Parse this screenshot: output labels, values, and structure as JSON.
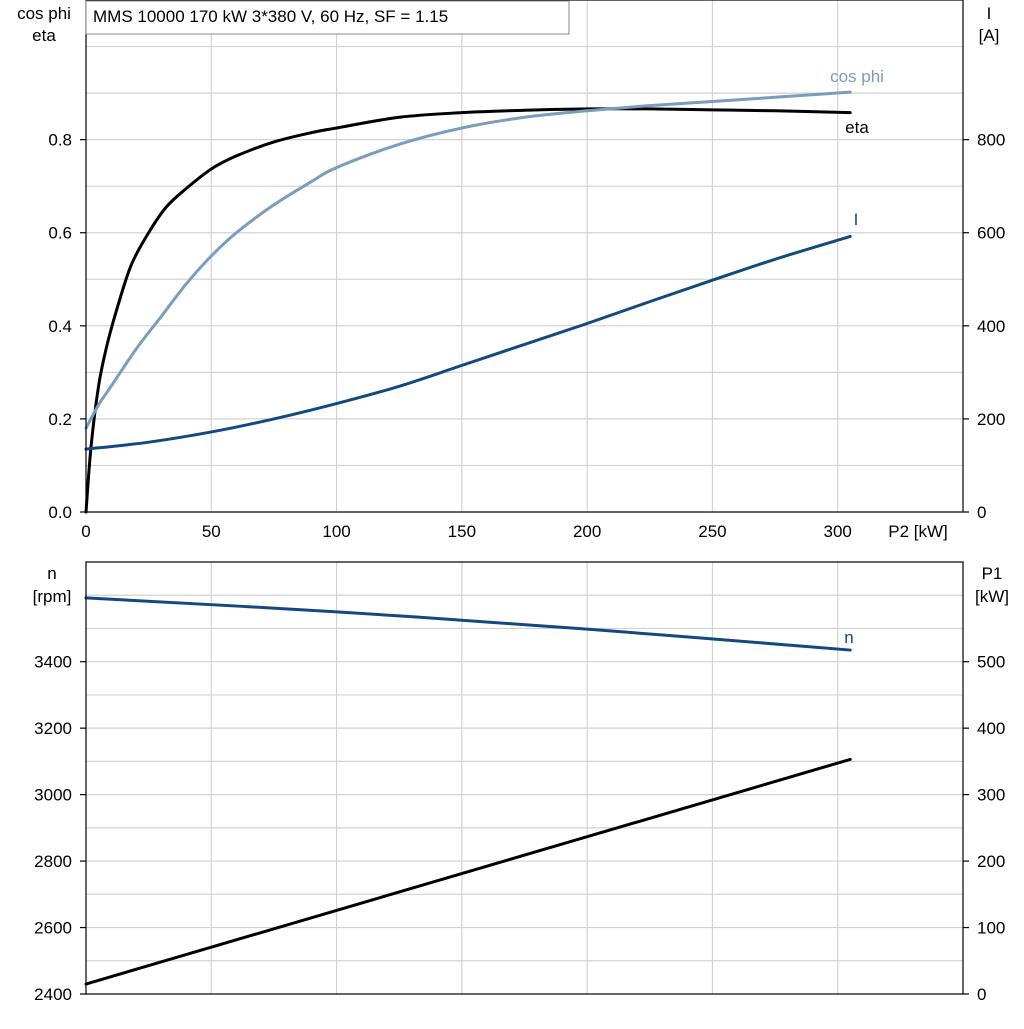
{
  "header": {
    "title": "MMS 10000   170 kW   3*380 V, 60 Hz, SF = 1.15"
  },
  "chart_data": [
    {
      "type": "line",
      "title": "MMS 10000   170 kW   3*380 V, 60 Hz, SF = 1.15",
      "xlabel": "P2 [kW]",
      "ylabel_left": [
        "cos phi",
        "eta"
      ],
      "ylabel_right": [
        "I",
        "[A]"
      ],
      "xlim": [
        0,
        350
      ],
      "ylim_left": [
        0,
        1.1
      ],
      "ylim_right": [
        0,
        1100
      ],
      "x_ticks": [
        0,
        50,
        100,
        150,
        200,
        250,
        300
      ],
      "y_ticks_left": [
        0.0,
        0.2,
        0.4,
        0.6,
        0.8
      ],
      "y_tick_labels_left": [
        "0.0",
        "0.2",
        "0.4",
        "0.6",
        "0.8"
      ],
      "y_ticks_right": [
        0,
        200,
        400,
        600,
        800
      ],
      "grid": true,
      "series": [
        {
          "name": "eta",
          "axis": "left",
          "color": "#000000",
          "x": [
            0,
            2,
            5,
            8,
            12,
            18,
            25,
            32,
            40,
            50,
            60,
            75,
            90,
            100,
            125,
            150,
            175,
            200,
            225,
            250,
            275,
            305
          ],
          "y": [
            0.0,
            0.14,
            0.27,
            0.35,
            0.43,
            0.53,
            0.6,
            0.655,
            0.695,
            0.737,
            0.765,
            0.795,
            0.815,
            0.825,
            0.848,
            0.858,
            0.863,
            0.866,
            0.866,
            0.864,
            0.862,
            0.858
          ]
        },
        {
          "name": "cos phi",
          "axis": "left",
          "color": "#7a9cbd",
          "x": [
            0,
            5,
            10,
            20,
            30,
            40,
            50,
            60,
            75,
            90,
            100,
            125,
            150,
            175,
            200,
            225,
            250,
            275,
            305
          ],
          "y": [
            0.18,
            0.23,
            0.27,
            0.35,
            0.42,
            0.49,
            0.55,
            0.6,
            0.66,
            0.71,
            0.74,
            0.79,
            0.825,
            0.848,
            0.862,
            0.873,
            0.882,
            0.891,
            0.902
          ]
        },
        {
          "name": "I",
          "axis": "right",
          "color": "#124a80",
          "x": [
            0,
            25,
            50,
            75,
            100,
            125,
            150,
            175,
            200,
            225,
            250,
            275,
            305
          ],
          "y": [
            135,
            150,
            172,
            200,
            233,
            270,
            315,
            360,
            405,
            452,
            498,
            543,
            592
          ]
        }
      ]
    },
    {
      "type": "line",
      "xlim": [
        0,
        350
      ],
      "ylabel_left": [
        "n",
        "[rpm]"
      ],
      "ylabel_right": [
        "P1",
        "[kW]"
      ],
      "ylim_left": [
        2400,
        3700
      ],
      "ylim_right": [
        0,
        650
      ],
      "y_ticks_left": [
        2400,
        2600,
        2800,
        3000,
        3200,
        3400
      ],
      "y_ticks_right": [
        0,
        100,
        200,
        300,
        400,
        500
      ],
      "grid": true,
      "series": [
        {
          "name": "n",
          "axis": "left",
          "color": "#124a80",
          "x": [
            0,
            100,
            200,
            305
          ],
          "y": [
            3592,
            3550,
            3498,
            3435
          ]
        },
        {
          "axis": "right",
          "color": "#000000",
          "x": [
            0,
            305
          ],
          "y": [
            15,
            353
          ]
        }
      ]
    }
  ]
}
